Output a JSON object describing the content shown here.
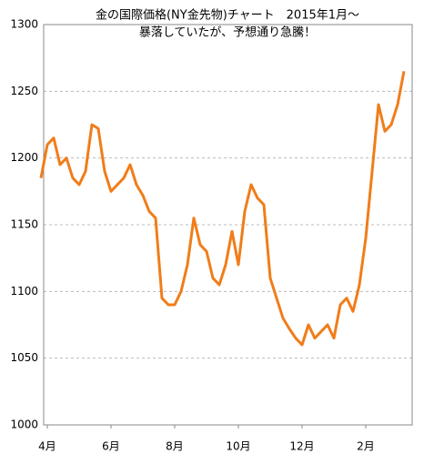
{
  "chart_data": {
    "type": "line",
    "title": "金の国際価格(NY金先物)チャート　2015年1月～",
    "subtitle": "暴落していたが、予想通り急騰！",
    "categories": [
      null,
      "4月",
      null,
      null,
      null,
      null,
      null,
      null,
      null,
      null,
      null,
      "6月",
      null,
      null,
      null,
      null,
      null,
      null,
      null,
      null,
      null,
      "8月",
      null,
      null,
      null,
      null,
      null,
      null,
      null,
      null,
      null,
      "10月",
      null,
      null,
      null,
      null,
      null,
      null,
      null,
      null,
      null,
      "12月",
      null,
      null,
      null,
      null,
      null,
      null,
      null,
      null,
      null,
      "2月",
      null,
      null,
      null,
      null,
      null,
      null
    ],
    "series": [
      {
        "color": "#f07d1a",
        "values": [
          1185,
          1210,
          1215,
          1195,
          1200,
          1185,
          1180,
          1190,
          1225,
          1222,
          1190,
          1175,
          1180,
          1185,
          1195,
          1180,
          1172,
          1160,
          1155,
          1095,
          1090,
          1090,
          1100,
          1120,
          1155,
          1135,
          1130,
          1110,
          1105,
          1120,
          1145,
          1120,
          1160,
          1180,
          1170,
          1165,
          1110,
          1095,
          1080,
          1072,
          1065,
          1060,
          1075,
          1065,
          1070,
          1075,
          1065,
          1090,
          1095,
          1085,
          1105,
          1140,
          1190,
          1240,
          1220,
          1225,
          1240,
          1265
        ]
      }
    ],
    "ylim": [
      1000,
      1300
    ],
    "yticks": [
      1000,
      1050,
      1100,
      1150,
      1200,
      1250,
      1300
    ],
    "grid": true
  }
}
